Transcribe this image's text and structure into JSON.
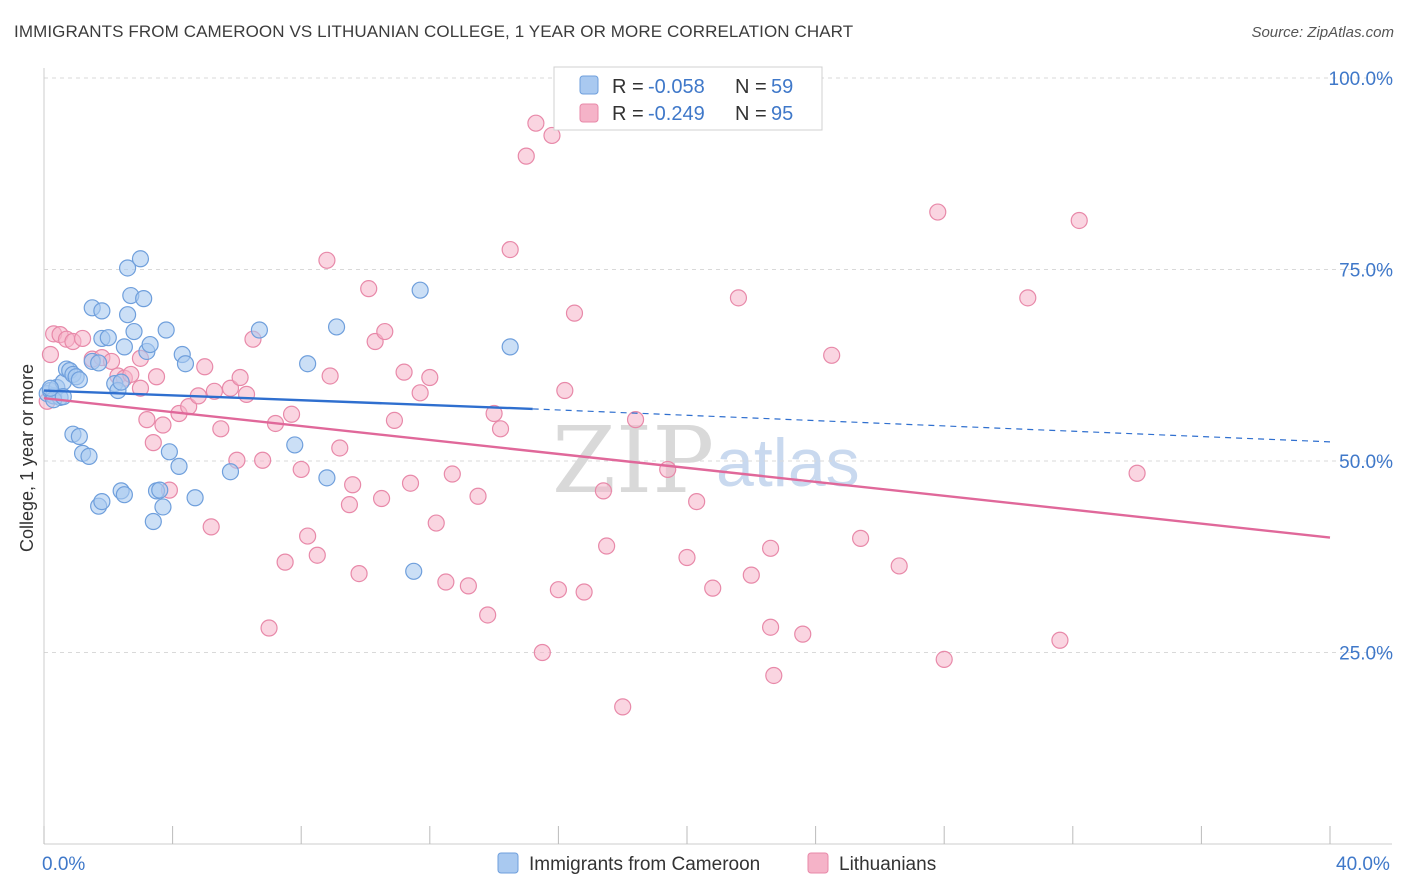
{
  "title": "IMMIGRANTS FROM CAMEROON VS LITHUANIAN COLLEGE, 1 YEAR OR MORE CORRELATION CHART",
  "source": "Source: ZipAtlas.com",
  "watermark": {
    "zip": "ZIP",
    "atlas": "atlas"
  },
  "legend_box": {
    "rows": [
      {
        "r_label": "R = ",
        "r_value": "-0.058",
        "n_label": "N = ",
        "n_value": "59",
        "color": "#a9c9f0"
      },
      {
        "r_label": "R = ",
        "r_value": "-0.249",
        "n_label": "N = ",
        "n_value": "95",
        "color": "#f5b3c8"
      }
    ]
  },
  "bottom_legend": [
    {
      "label": "Immigrants from Cameroon",
      "color": "#a9c9f0"
    },
    {
      "label": "Lithuanians",
      "color": "#f5b3c8"
    }
  ],
  "colors": {
    "blue_fill": "#a9c9f0",
    "blue_stroke": "#6f9fdc",
    "blue_line": "#2f6fcf",
    "pink_fill": "#f5b3c8",
    "pink_stroke": "#e889a9",
    "pink_line": "#e0689a",
    "grid": "#d9d9d9",
    "tick_text": "#3f78c9"
  },
  "chart_data": {
    "type": "scatter",
    "title": "IMMIGRANTS FROM CAMEROON VS LITHUANIAN COLLEGE, 1 YEAR OR MORE CORRELATION CHART",
    "xlabel": "",
    "ylabel": "College, 1 year or more",
    "xlim": [
      0,
      40
    ],
    "ylim": [
      0,
      100
    ],
    "x_tick_labels": [
      "0.0%",
      "40.0%"
    ],
    "y_ticks": [
      25,
      50,
      75,
      100
    ],
    "y_tick_labels": [
      "25.0%",
      "50.0%",
      "75.0%",
      "100.0%"
    ],
    "grid": "horizontal dashed",
    "legend": "top-center",
    "series": [
      {
        "name": "Immigrants from Cameroon",
        "R": -0.058,
        "N": 59,
        "trend": {
          "x0": 0,
          "y0": 59.2,
          "x1": 15.2,
          "y1": 56.8,
          "dashed_to_x": 40,
          "dashed_y": 52.5
        },
        "points": [
          [
            0.1,
            58.8
          ],
          [
            0.2,
            59.2
          ],
          [
            0.3,
            58.5
          ],
          [
            0.4,
            59.6
          ],
          [
            0.5,
            58.3
          ],
          [
            0.6,
            60.3
          ],
          [
            0.7,
            62.0
          ],
          [
            0.8,
            61.8
          ],
          [
            0.9,
            61.3
          ],
          [
            1.0,
            61.0
          ],
          [
            1.1,
            60.6
          ],
          [
            0.9,
            53.5
          ],
          [
            1.1,
            53.2
          ],
          [
            1.2,
            51.0
          ],
          [
            1.4,
            50.6
          ],
          [
            1.5,
            63.0
          ],
          [
            1.7,
            62.8
          ],
          [
            1.8,
            66.0
          ],
          [
            1.5,
            70.0
          ],
          [
            1.8,
            69.6
          ],
          [
            2.0,
            66.1
          ],
          [
            2.2,
            60.1
          ],
          [
            2.3,
            59.2
          ],
          [
            2.4,
            60.3
          ],
          [
            2.5,
            64.9
          ],
          [
            2.6,
            75.2
          ],
          [
            2.6,
            69.1
          ],
          [
            2.7,
            71.6
          ],
          [
            2.8,
            66.9
          ],
          [
            3.0,
            76.4
          ],
          [
            3.1,
            71.2
          ],
          [
            3.2,
            64.3
          ],
          [
            3.3,
            65.2
          ],
          [
            3.4,
            42.1
          ],
          [
            3.5,
            46.1
          ],
          [
            3.6,
            46.2
          ],
          [
            3.7,
            44.0
          ],
          [
            3.8,
            67.1
          ],
          [
            3.9,
            51.2
          ],
          [
            4.2,
            49.3
          ],
          [
            4.3,
            63.9
          ],
          [
            4.4,
            62.7
          ],
          [
            4.7,
            45.2
          ],
          [
            5.8,
            48.6
          ],
          [
            6.7,
            67.1
          ],
          [
            7.8,
            52.1
          ],
          [
            8.2,
            62.7
          ],
          [
            8.8,
            47.8
          ],
          [
            9.1,
            67.5
          ],
          [
            11.5,
            35.6
          ],
          [
            11.7,
            72.3
          ],
          [
            14.5,
            64.9
          ],
          [
            2.4,
            46.1
          ],
          [
            2.5,
            45.6
          ],
          [
            1.7,
            44.1
          ],
          [
            1.8,
            44.7
          ],
          [
            0.3,
            58.0
          ],
          [
            0.6,
            58.4
          ],
          [
            0.2,
            59.5
          ]
        ]
      },
      {
        "name": "Lithuanians",
        "R": -0.249,
        "N": 95,
        "trend": {
          "x0": 0,
          "y0": 58.2,
          "x1": 40,
          "y1": 40.0
        },
        "points": [
          [
            0.1,
            57.8
          ],
          [
            0.2,
            63.9
          ],
          [
            0.3,
            66.6
          ],
          [
            0.5,
            66.5
          ],
          [
            0.7,
            65.9
          ],
          [
            0.9,
            65.6
          ],
          [
            1.2,
            66.0
          ],
          [
            1.5,
            63.3
          ],
          [
            1.8,
            63.5
          ],
          [
            2.1,
            63.0
          ],
          [
            2.3,
            61.1
          ],
          [
            2.5,
            60.8
          ],
          [
            2.7,
            61.3
          ],
          [
            3.0,
            59.5
          ],
          [
            3.2,
            55.4
          ],
          [
            3.4,
            52.4
          ],
          [
            3.5,
            61.0
          ],
          [
            3.7,
            54.7
          ],
          [
            3.9,
            46.2
          ],
          [
            4.2,
            56.2
          ],
          [
            4.5,
            57.1
          ],
          [
            4.8,
            58.5
          ],
          [
            5.0,
            62.3
          ],
          [
            5.2,
            41.4
          ],
          [
            5.3,
            59.1
          ],
          [
            5.5,
            54.2
          ],
          [
            5.8,
            59.5
          ],
          [
            6.0,
            50.1
          ],
          [
            6.1,
            60.9
          ],
          [
            6.3,
            58.7
          ],
          [
            6.5,
            65.9
          ],
          [
            6.8,
            50.1
          ],
          [
            7.0,
            28.2
          ],
          [
            7.2,
            54.9
          ],
          [
            7.5,
            36.8
          ],
          [
            7.7,
            56.1
          ],
          [
            8.0,
            48.9
          ],
          [
            8.2,
            40.2
          ],
          [
            8.5,
            37.7
          ],
          [
            8.8,
            76.2
          ],
          [
            8.9,
            61.1
          ],
          [
            9.2,
            51.7
          ],
          [
            9.5,
            44.3
          ],
          [
            9.6,
            46.9
          ],
          [
            9.8,
            35.3
          ],
          [
            10.1,
            72.5
          ],
          [
            10.3,
            65.6
          ],
          [
            10.5,
            45.1
          ],
          [
            10.6,
            66.9
          ],
          [
            10.9,
            55.3
          ],
          [
            11.2,
            61.6
          ],
          [
            11.4,
            47.1
          ],
          [
            11.7,
            58.9
          ],
          [
            12.0,
            60.9
          ],
          [
            12.2,
            41.9
          ],
          [
            12.5,
            34.2
          ],
          [
            12.7,
            48.3
          ],
          [
            13.2,
            33.7
          ],
          [
            13.5,
            45.4
          ],
          [
            13.8,
            29.9
          ],
          [
            14.0,
            56.2
          ],
          [
            14.2,
            54.2
          ],
          [
            14.5,
            77.6
          ],
          [
            15.0,
            89.8
          ],
          [
            15.3,
            94.1
          ],
          [
            15.5,
            25.0
          ],
          [
            15.8,
            92.5
          ],
          [
            16.0,
            33.2
          ],
          [
            16.2,
            59.2
          ],
          [
            16.5,
            69.3
          ],
          [
            16.8,
            32.9
          ],
          [
            17.5,
            38.9
          ],
          [
            17.4,
            46.1
          ],
          [
            18.0,
            17.9
          ],
          [
            18.4,
            55.4
          ],
          [
            19.4,
            48.9
          ],
          [
            20.0,
            37.4
          ],
          [
            20.3,
            44.7
          ],
          [
            20.8,
            33.4
          ],
          [
            21.6,
            71.3
          ],
          [
            22.0,
            35.1
          ],
          [
            22.6,
            38.6
          ],
          [
            22.7,
            22.0
          ],
          [
            22.6,
            28.3
          ],
          [
            23.6,
            27.4
          ],
          [
            24.5,
            63.8
          ],
          [
            25.4,
            39.9
          ],
          [
            26.6,
            36.3
          ],
          [
            27.8,
            82.5
          ],
          [
            28.0,
            24.1
          ],
          [
            30.6,
            71.3
          ],
          [
            31.6,
            26.6
          ],
          [
            32.2,
            81.4
          ],
          [
            34.0,
            48.4
          ],
          [
            3.0,
            63.4
          ]
        ]
      }
    ]
  }
}
